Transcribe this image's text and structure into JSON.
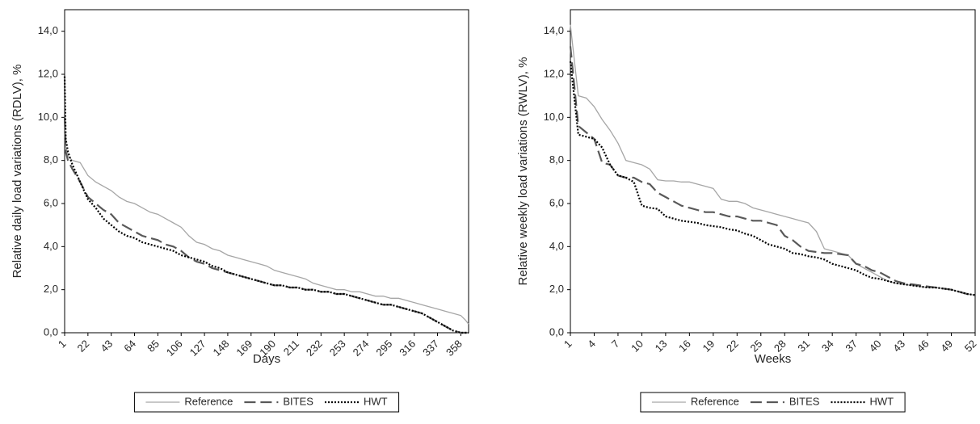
{
  "chart_data": [
    {
      "type": "line",
      "x_label": "Days",
      "y_label": "Relative daily load variations (RDLV), %",
      "x": [
        1,
        2,
        4,
        8,
        15,
        22,
        29,
        36,
        43,
        50,
        57,
        64,
        71,
        78,
        85,
        92,
        99,
        106,
        113,
        120,
        127,
        134,
        141,
        148,
        155,
        162,
        169,
        176,
        183,
        190,
        197,
        204,
        211,
        218,
        225,
        232,
        239,
        246,
        253,
        260,
        267,
        274,
        281,
        288,
        295,
        302,
        309,
        316,
        323,
        330,
        337,
        344,
        351,
        358,
        362,
        365
      ],
      "xlim": [
        1,
        365
      ],
      "xticks": [
        1,
        22,
        43,
        64,
        85,
        106,
        127,
        148,
        169,
        190,
        211,
        232,
        253,
        274,
        295,
        316,
        337,
        358
      ],
      "ylim": [
        0,
        15
      ],
      "yticks": [
        {
          "value": 0,
          "label": "0,0"
        },
        {
          "value": 2,
          "label": "2,0"
        },
        {
          "value": 4,
          "label": "4,0"
        },
        {
          "value": 6,
          "label": "6,0"
        },
        {
          "value": 8,
          "label": "8,0"
        },
        {
          "value": 10,
          "label": "10,0"
        },
        {
          "value": 12,
          "label": "12,0"
        },
        {
          "value": 14,
          "label": "14,0"
        }
      ],
      "grid": false,
      "legend": "bottom",
      "series": [
        {
          "name": "Reference",
          "color": "#a6a6a6",
          "dash": "solid",
          "values": [
            10.0,
            8.6,
            8.2,
            8.0,
            7.9,
            7.3,
            7.0,
            6.8,
            6.6,
            6.3,
            6.1,
            6.0,
            5.8,
            5.6,
            5.5,
            5.3,
            5.1,
            4.9,
            4.5,
            4.2,
            4.1,
            3.9,
            3.8,
            3.6,
            3.5,
            3.4,
            3.3,
            3.2,
            3.1,
            2.9,
            2.8,
            2.7,
            2.6,
            2.5,
            2.3,
            2.2,
            2.1,
            2.0,
            2.0,
            1.9,
            1.9,
            1.8,
            1.7,
            1.7,
            1.6,
            1.6,
            1.5,
            1.4,
            1.3,
            1.2,
            1.1,
            1.0,
            0.9,
            0.8,
            0.6,
            0.4
          ]
        },
        {
          "name": "BITES",
          "color": "#595959",
          "dash": "dashed",
          "values": [
            10.0,
            8.4,
            8.0,
            7.6,
            7.0,
            6.3,
            6.0,
            5.7,
            5.5,
            5.1,
            4.9,
            4.7,
            4.5,
            4.4,
            4.3,
            4.1,
            4.0,
            3.8,
            3.5,
            3.3,
            3.2,
            3.0,
            2.9,
            2.8,
            2.7,
            2.6,
            2.5,
            2.4,
            2.3,
            2.2,
            2.2,
            2.1,
            2.1,
            2.0,
            2.0,
            1.9,
            1.9,
            1.8,
            1.8,
            1.7,
            1.6,
            1.5,
            1.4,
            1.3,
            1.3,
            1.2,
            1.1,
            1.0,
            0.9,
            0.7,
            0.5,
            0.3,
            0.1,
            0.0,
            0.0,
            0.0
          ]
        },
        {
          "name": "HWT",
          "color": "#000000",
          "dash": "dotted",
          "values": [
            11.9,
            9.0,
            8.4,
            7.8,
            7.0,
            6.2,
            5.8,
            5.3,
            5.0,
            4.7,
            4.5,
            4.4,
            4.2,
            4.1,
            4.0,
            3.9,
            3.8,
            3.6,
            3.5,
            3.4,
            3.3,
            3.1,
            3.0,
            2.8,
            2.7,
            2.6,
            2.5,
            2.4,
            2.3,
            2.2,
            2.2,
            2.1,
            2.1,
            2.0,
            2.0,
            1.9,
            1.9,
            1.8,
            1.8,
            1.7,
            1.6,
            1.5,
            1.4,
            1.3,
            1.3,
            1.2,
            1.1,
            1.0,
            0.9,
            0.7,
            0.5,
            0.3,
            0.1,
            0.0,
            0.0,
            0.0
          ]
        }
      ]
    },
    {
      "type": "line",
      "x_label": "Weeks",
      "y_label": "Relative weekly load variations (RWLV), %",
      "x": [
        1,
        2,
        3,
        4,
        5,
        6,
        7,
        8,
        9,
        10,
        11,
        12,
        13,
        14,
        15,
        16,
        17,
        18,
        19,
        20,
        21,
        22,
        23,
        24,
        25,
        26,
        27,
        28,
        29,
        30,
        31,
        32,
        33,
        34,
        35,
        36,
        37,
        38,
        39,
        40,
        41,
        42,
        43,
        44,
        45,
        46,
        47,
        48,
        49,
        50,
        51,
        52
      ],
      "xlim": [
        1,
        52
      ],
      "xticks": [
        1,
        4,
        7,
        10,
        13,
        16,
        19,
        22,
        25,
        28,
        31,
        34,
        37,
        40,
        43,
        46,
        49,
        52
      ],
      "ylim": [
        0,
        15
      ],
      "yticks": [
        {
          "value": 0,
          "label": "0,0"
        },
        {
          "value": 2,
          "label": "2,0"
        },
        {
          "value": 4,
          "label": "4,0"
        },
        {
          "value": 6,
          "label": "6,0"
        },
        {
          "value": 8,
          "label": "8,0"
        },
        {
          "value": 10,
          "label": "10,0"
        },
        {
          "value": 12,
          "label": "12,0"
        },
        {
          "value": 14,
          "label": "14,0"
        }
      ],
      "grid": false,
      "legend": "bottom",
      "series": [
        {
          "name": "Reference",
          "color": "#a6a6a6",
          "dash": "solid",
          "values": [
            14.3,
            11.0,
            10.9,
            10.5,
            9.9,
            9.4,
            8.8,
            8.0,
            7.9,
            7.8,
            7.6,
            7.1,
            7.05,
            7.05,
            7.0,
            7.0,
            6.9,
            6.8,
            6.7,
            6.2,
            6.1,
            6.1,
            6.0,
            5.8,
            5.7,
            5.6,
            5.5,
            5.4,
            5.3,
            5.2,
            5.1,
            4.7,
            3.9,
            3.8,
            3.7,
            3.6,
            3.2,
            3.0,
            2.8,
            2.6,
            2.4,
            2.3,
            2.25,
            2.2,
            2.15,
            2.1,
            2.1,
            2.05,
            2.0,
            1.9,
            1.8,
            1.75
          ]
        },
        {
          "name": "BITES",
          "color": "#595959",
          "dash": "dashed",
          "values": [
            13.3,
            9.6,
            9.3,
            9.0,
            7.9,
            7.8,
            7.3,
            7.2,
            7.2,
            7.0,
            6.9,
            6.5,
            6.3,
            6.1,
            5.9,
            5.8,
            5.7,
            5.6,
            5.6,
            5.5,
            5.4,
            5.4,
            5.3,
            5.2,
            5.2,
            5.1,
            5.0,
            4.5,
            4.3,
            4.0,
            3.8,
            3.75,
            3.7,
            3.7,
            3.65,
            3.6,
            3.2,
            3.1,
            2.9,
            2.8,
            2.6,
            2.4,
            2.3,
            2.25,
            2.2,
            2.15,
            2.1,
            2.05,
            2.0,
            1.9,
            1.8,
            1.75
          ]
        },
        {
          "name": "HWT",
          "color": "#000000",
          "dash": "dotted",
          "values": [
            12.6,
            9.2,
            9.1,
            9.0,
            8.6,
            7.8,
            7.3,
            7.2,
            7.0,
            5.9,
            5.8,
            5.75,
            5.4,
            5.3,
            5.2,
            5.15,
            5.1,
            5.0,
            4.95,
            4.9,
            4.8,
            4.75,
            4.6,
            4.5,
            4.3,
            4.1,
            4.0,
            3.9,
            3.7,
            3.65,
            3.55,
            3.5,
            3.4,
            3.2,
            3.1,
            3.0,
            2.9,
            2.7,
            2.55,
            2.5,
            2.4,
            2.3,
            2.25,
            2.2,
            2.15,
            2.1,
            2.1,
            2.05,
            2.0,
            1.9,
            1.8,
            1.75
          ]
        }
      ]
    }
  ]
}
